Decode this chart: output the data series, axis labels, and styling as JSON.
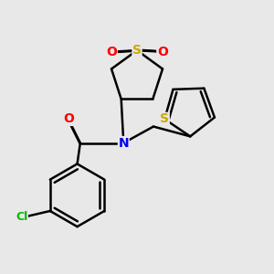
{
  "bg_color": "#e8e8e8",
  "bond_color": "#000000",
  "bond_width": 1.8,
  "atom_colors": {
    "O": "#ff0000",
    "N": "#0000ee",
    "S": "#ccaa00",
    "Cl": "#00bb00",
    "C": "#000000"
  },
  "font_size": 10
}
